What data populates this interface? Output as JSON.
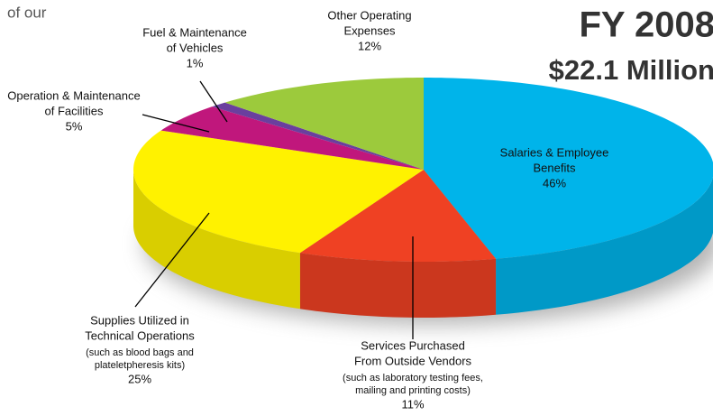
{
  "chart_data": {
    "type": "pie",
    "intro_text": "of our",
    "title": "FY 2008",
    "subtitle": "$22.1 Million",
    "categories": [
      [
        "Salaries & Employee",
        "Benefits"
      ],
      [
        "Services Purchased",
        "From Outside Vendors"
      ],
      [
        "Supplies Utilized in",
        "Technical Operations"
      ],
      [
        "Operation & Maintenance",
        "of Facilities"
      ],
      [
        "Fuel & Maintenance",
        "of Vehicles"
      ],
      [
        "Other Operating",
        "Expenses"
      ]
    ],
    "notes": [
      null,
      [
        "(such as laboratory testing fees,",
        "mailing and printing costs)"
      ],
      [
        "(such as blood bags and",
        "plateletpheresis kits)"
      ],
      null,
      null,
      null
    ],
    "values": [
      46,
      11,
      25,
      5,
      1,
      12
    ],
    "value_labels": [
      "46%",
      "11%",
      "25%",
      "5%",
      "1%",
      "12%"
    ],
    "colors": [
      "#00b4ea",
      "#ef4123",
      "#fff200",
      "#c0177c",
      "#6a3f9e",
      "#9cca3c"
    ]
  }
}
